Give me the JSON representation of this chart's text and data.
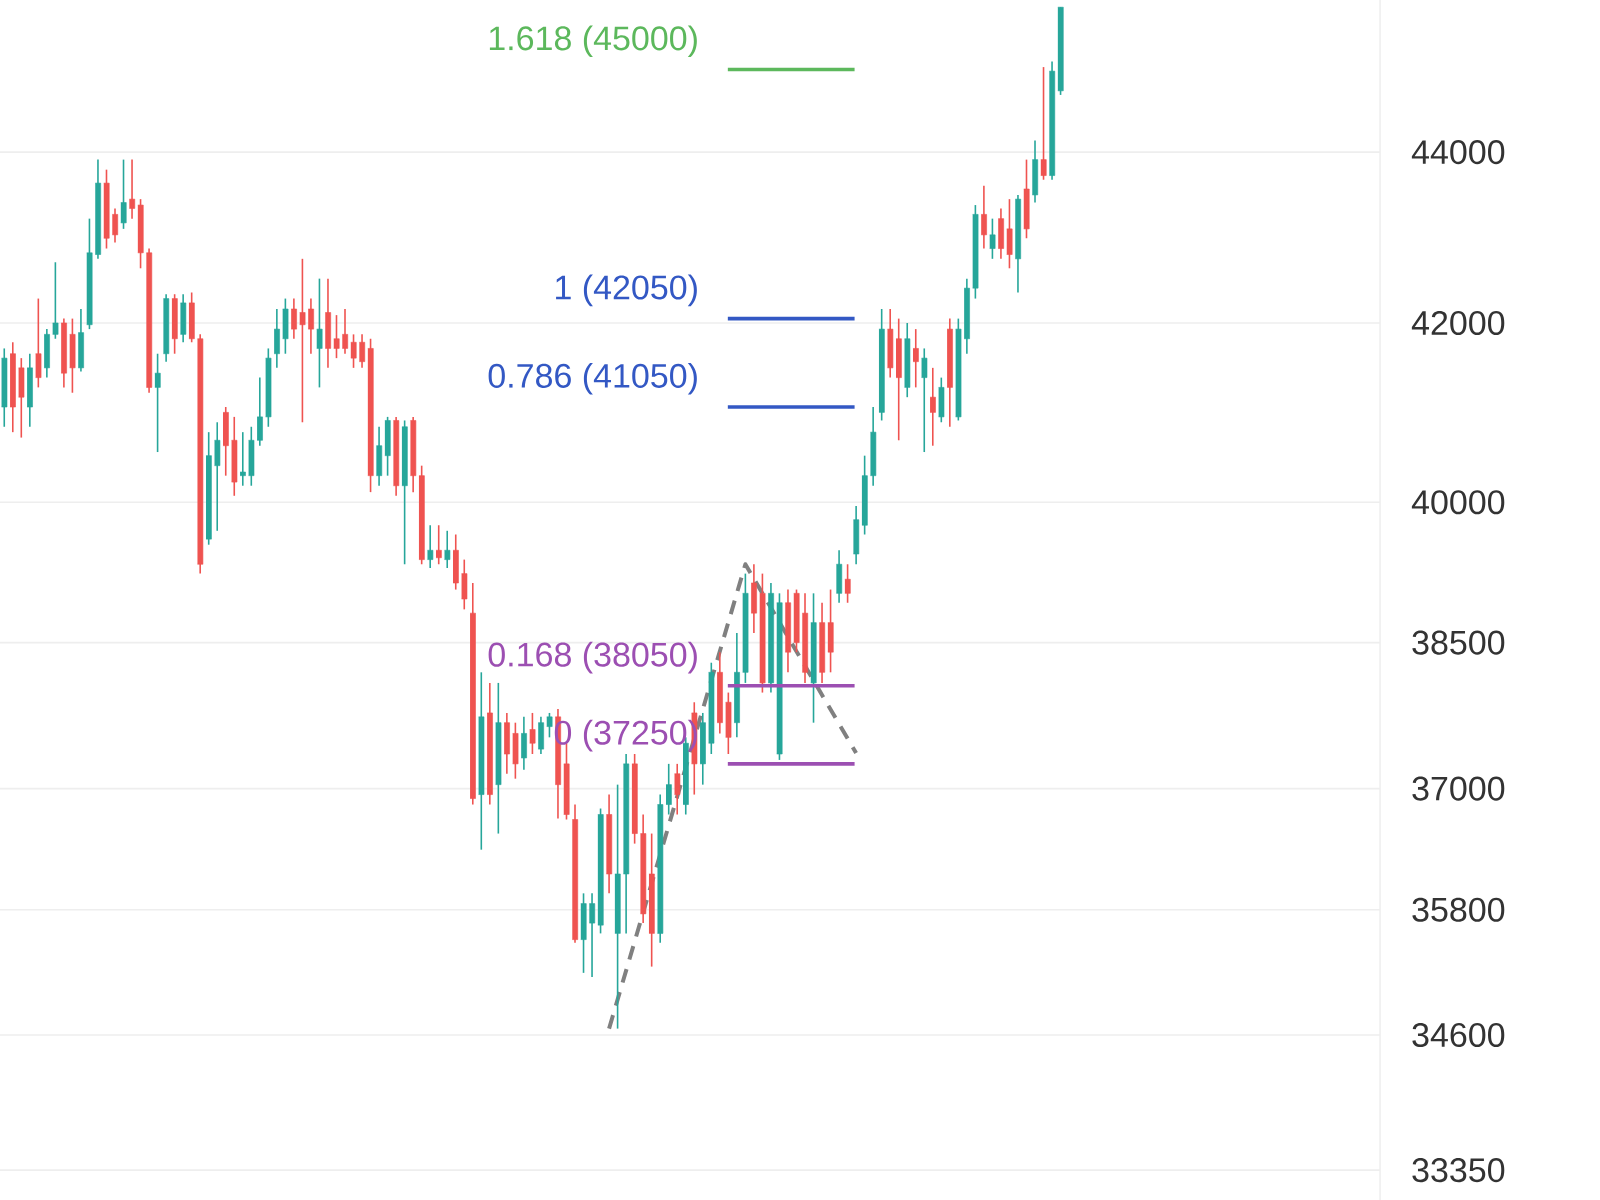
{
  "chart_data": {
    "type": "candlestick",
    "categories": [
      null,
      null,
      null,
      null,
      null,
      null,
      null,
      null,
      null,
      null,
      null,
      null,
      null,
      null,
      null,
      null,
      null,
      null,
      null,
      null,
      null,
      null,
      null,
      null,
      null,
      null,
      null,
      null,
      null,
      null,
      null,
      null,
      null,
      null,
      null,
      null,
      null,
      null,
      null,
      null,
      null,
      null,
      null,
      null,
      null,
      null,
      null,
      null,
      null,
      null,
      null,
      null,
      null,
      null,
      null,
      null,
      null,
      null,
      null,
      null,
      null,
      null,
      null,
      null,
      null,
      null,
      null,
      null,
      null,
      null,
      null,
      null,
      null,
      null,
      null,
      null,
      null,
      null,
      null,
      null,
      null,
      null,
      null,
      null,
      null,
      null,
      null,
      null,
      null,
      null,
      null,
      null,
      null,
      null,
      null,
      null,
      null,
      null,
      null,
      null,
      null,
      null,
      null,
      null,
      null,
      null,
      null,
      null,
      null,
      null,
      null,
      null,
      null,
      null,
      null,
      null,
      null,
      null,
      null,
      null,
      null,
      null,
      null,
      null,
      null,
      null,
      null,
      null,
      null,
      null,
      null,
      null,
      null,
      null,
      null,
      null,
      null,
      null,
      null,
      null,
      null,
      null,
      null,
      null,
      null,
      null,
      null,
      null,
      null,
      null,
      null,
      null,
      null,
      null,
      null,
      null,
      null,
      null,
      null,
      null,
      null,
      null
    ],
    "ohlc": [
      [
        41050,
        41710,
        40830,
        41600
      ],
      [
        41650,
        41780,
        40770,
        41050
      ],
      [
        41490,
        41600,
        40710,
        41160
      ],
      [
        41050,
        41650,
        40830,
        41490
      ],
      [
        41650,
        42280,
        41270,
        41380
      ],
      [
        41490,
        41930,
        41380,
        41870
      ],
      [
        41870,
        42700,
        41820,
        42000
      ],
      [
        42000,
        42050,
        41270,
        41430
      ],
      [
        41870,
        42050,
        41210,
        41490
      ],
      [
        41490,
        42160,
        41450,
        41890
      ],
      [
        41980,
        43210,
        41930,
        42810
      ],
      [
        42790,
        43910,
        42740,
        43630
      ],
      [
        43630,
        43790,
        42860,
        42980
      ],
      [
        43260,
        43330,
        42930,
        43020
      ],
      [
        43160,
        43910,
        43090,
        43400
      ],
      [
        43440,
        43910,
        43210,
        43330
      ],
      [
        43370,
        43440,
        42630,
        42810
      ],
      [
        42810,
        42860,
        41210,
        41270
      ],
      [
        41270,
        41650,
        40550,
        41430
      ],
      [
        41650,
        42330,
        41560,
        42280
      ],
      [
        42280,
        42330,
        41650,
        41820
      ],
      [
        41870,
        42330,
        41780,
        42230
      ],
      [
        42230,
        42350,
        41780,
        41820
      ],
      [
        41820,
        41870,
        39230,
        39330
      ],
      [
        39600,
        40770,
        39540,
        40510
      ],
      [
        40400,
        40880,
        39690,
        40680
      ],
      [
        40990,
        41050,
        40290,
        40620
      ],
      [
        40680,
        40940,
        40070,
        40220
      ],
      [
        40290,
        40770,
        40180,
        40330
      ],
      [
        40290,
        40830,
        40180,
        40680
      ],
      [
        40680,
        41380,
        40620,
        40940
      ],
      [
        40940,
        41710,
        40830,
        41600
      ],
      [
        41650,
        42160,
        41490,
        41930
      ],
      [
        41820,
        42280,
        41650,
        42160
      ],
      [
        42160,
        42280,
        41820,
        41930
      ],
      [
        42120,
        42740,
        40880,
        41980
      ],
      [
        42160,
        42280,
        41650,
        41930
      ],
      [
        41710,
        42510,
        41270,
        41930
      ],
      [
        42120,
        42510,
        41490,
        41710
      ],
      [
        41820,
        42090,
        41600,
        41710
      ],
      [
        41870,
        42160,
        41650,
        41710
      ],
      [
        41780,
        41870,
        41490,
        41600
      ],
      [
        41780,
        41870,
        41490,
        41560
      ],
      [
        41710,
        41820,
        40110,
        40290
      ],
      [
        40290,
        40830,
        40180,
        40620
      ],
      [
        40510,
        40940,
        40290,
        40900
      ],
      [
        40900,
        40940,
        40070,
        40180
      ],
      [
        40180,
        40900,
        39330,
        40830
      ],
      [
        40900,
        40940,
        40110,
        40290
      ],
      [
        40290,
        40400,
        39330,
        39380
      ],
      [
        39380,
        39750,
        39290,
        39480
      ],
      [
        39480,
        39750,
        39330,
        39400
      ],
      [
        39380,
        39690,
        39290,
        39480
      ],
      [
        39480,
        39650,
        39060,
        39130
      ],
      [
        39230,
        39380,
        38850,
        38960
      ],
      [
        38810,
        39130,
        36840,
        36900
      ],
      [
        36940,
        38190,
        36390,
        37730
      ],
      [
        37770,
        38080,
        36840,
        36940
      ],
      [
        37040,
        38080,
        36550,
        37670
      ],
      [
        37670,
        37770,
        37150,
        37350
      ],
      [
        37560,
        37670,
        37100,
        37250
      ],
      [
        37310,
        37730,
        37190,
        37560
      ],
      [
        37600,
        37770,
        37350,
        37460
      ],
      [
        37400,
        37730,
        37350,
        37670
      ],
      [
        37630,
        37770,
        37520,
        37730
      ],
      [
        37730,
        37810,
        36700,
        37040
      ],
      [
        37250,
        37460,
        36690,
        36740
      ],
      [
        36690,
        36840,
        35480,
        35510
      ],
      [
        35510,
        35960,
        35190,
        35860
      ],
      [
        35670,
        35960,
        35150,
        35860
      ],
      [
        35650,
        36800,
        35570,
        36740
      ],
      [
        36740,
        36940,
        35960,
        36150
      ],
      [
        35570,
        37040,
        34660,
        36150
      ],
      [
        36150,
        37350,
        35570,
        37250
      ],
      [
        37250,
        37350,
        36450,
        36550
      ],
      [
        36550,
        36740,
        35670,
        35760
      ],
      [
        36150,
        36550,
        35250,
        35570
      ],
      [
        35570,
        36940,
        35480,
        36840
      ],
      [
        36840,
        37250,
        36740,
        37040
      ],
      [
        37150,
        37250,
        36740,
        36940
      ],
      [
        36840,
        37520,
        36740,
        37460
      ],
      [
        37770,
        37880,
        36940,
        37250
      ],
      [
        37250,
        37770,
        37040,
        37670
      ],
      [
        37460,
        38290,
        37350,
        38190
      ],
      [
        38190,
        38400,
        37560,
        37670
      ],
      [
        37880,
        37980,
        37350,
        37520
      ],
      [
        37670,
        38600,
        37520,
        38190
      ],
      [
        38190,
        39230,
        38080,
        39020
      ],
      [
        39130,
        39330,
        38600,
        38810
      ],
      [
        39020,
        39230,
        37980,
        38080
      ],
      [
        38080,
        39130,
        37980,
        39020
      ],
      [
        37350,
        39020,
        37290,
        38920
      ],
      [
        38920,
        39060,
        38190,
        38400
      ],
      [
        39020,
        39060,
        38400,
        38500
      ],
      [
        38810,
        39020,
        38080,
        38190
      ],
      [
        38080,
        39020,
        37670,
        38710
      ],
      [
        38710,
        38920,
        38080,
        38190
      ],
      [
        38710,
        39060,
        38190,
        38400
      ],
      [
        39020,
        39480,
        38920,
        39330
      ],
      [
        39170,
        39330,
        38920,
        39020
      ],
      [
        39440,
        39960,
        39330,
        39810
      ],
      [
        39750,
        40510,
        39650,
        40290
      ],
      [
        40290,
        41050,
        40180,
        40770
      ],
      [
        40990,
        42160,
        40900,
        41930
      ],
      [
        41930,
        42160,
        41380,
        41490
      ],
      [
        41820,
        42050,
        40680,
        41380
      ],
      [
        41270,
        42000,
        41160,
        41820
      ],
      [
        41710,
        41930,
        41270,
        41560
      ],
      [
        41380,
        41710,
        40550,
        41600
      ],
      [
        41160,
        41490,
        40620,
        40990
      ],
      [
        40940,
        41380,
        40880,
        41270
      ],
      [
        41930,
        42050,
        40830,
        41270
      ],
      [
        40940,
        42050,
        40900,
        41930
      ],
      [
        41820,
        42510,
        41650,
        42400
      ],
      [
        42400,
        43370,
        42280,
        43260
      ],
      [
        43260,
        43600,
        42860,
        43020
      ],
      [
        42860,
        43210,
        42740,
        43020
      ],
      [
        43210,
        43330,
        42740,
        42860
      ],
      [
        43090,
        43440,
        42630,
        42790
      ],
      [
        42740,
        43490,
        42350,
        43440
      ],
      [
        43560,
        43910,
        42980,
        43090
      ],
      [
        43490,
        44140,
        43400,
        43910
      ],
      [
        43910,
        45030,
        43670,
        43720
      ],
      [
        43720,
        45100,
        43670,
        44980
      ],
      [
        44740,
        45770,
        44690,
        45770
      ],
      null,
      null,
      null,
      null,
      null,
      null,
      null,
      null,
      null,
      null,
      null,
      null,
      null,
      null,
      null,
      null,
      null,
      null,
      null,
      null,
      null,
      null,
      null,
      null,
      null,
      null,
      null,
      null,
      null,
      null,
      null,
      null,
      null,
      null,
      null,
      null,
      null
    ],
    "series": [
      {
        "type": "line",
        "values": [
          null,
          null,
          null,
          null,
          null,
          null,
          null,
          null,
          null,
          null,
          null,
          null,
          null,
          null,
          null,
          null,
          null,
          null,
          null,
          null,
          null,
          null,
          null,
          null,
          null,
          null,
          null,
          null,
          null,
          null,
          null,
          null,
          null,
          null,
          null,
          null,
          null,
          null,
          null,
          null,
          null,
          null,
          null,
          null,
          null,
          null,
          null,
          null,
          null,
          null,
          null,
          null,
          null,
          null,
          null,
          null,
          null,
          null,
          null,
          null,
          null,
          null,
          null,
          null,
          null,
          null,
          null,
          null,
          null,
          null,
          null,
          34660,
          null,
          null,
          null,
          null,
          null,
          null,
          null,
          null,
          null,
          null,
          null,
          null,
          null,
          null,
          null,
          39330,
          null,
          null,
          null,
          null,
          null,
          null,
          null,
          null,
          null,
          null,
          null,
          null,
          37360,
          null,
          null,
          null,
          null,
          null,
          null,
          null,
          null,
          null,
          null,
          null,
          null,
          null,
          null,
          null,
          null,
          null,
          null,
          null,
          null,
          null,
          null,
          null,
          null,
          null,
          null,
          null,
          null,
          null,
          null,
          null,
          null,
          null,
          null,
          null,
          null,
          null,
          null,
          null,
          null,
          null,
          null,
          null,
          null,
          null,
          null,
          null,
          null,
          null,
          null,
          null,
          null,
          null,
          null,
          null,
          null,
          null,
          null,
          null,
          null,
          null
        ],
        "color": "#808080",
        "line_style": "dashed"
      }
    ],
    "ref_lines": [
      {
        "axis": "y",
        "value": 45000,
        "label": "1.618 (45000)",
        "color": "#5cb85c"
      },
      {
        "axis": "y",
        "value": 42050,
        "label": "1 (42050)",
        "color": "#3358c4"
      },
      {
        "axis": "y",
        "value": 41050,
        "label": "0.786 (41050)",
        "color": "#3358c4"
      },
      {
        "axis": "y",
        "value": 38050,
        "label": "0.168 (38050)",
        "color": "#9c4fb2"
      },
      {
        "axis": "y",
        "value": 37250,
        "label": "0 (37250)",
        "color": "#9c4fb2"
      }
    ],
    "ylim": [
      33080,
      45860
    ],
    "yticks": [
      33350,
      34600,
      35800,
      37000,
      38500,
      40000,
      42000,
      44000
    ],
    "log": true,
    "grid": "y"
  }
}
